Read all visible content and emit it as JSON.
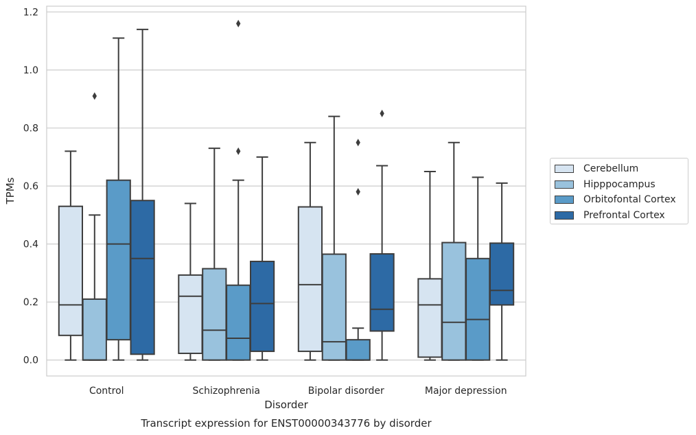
{
  "chart_data": {
    "type": "box",
    "title": "",
    "xlabel": "Disorder",
    "ylabel": "TPMs",
    "caption": "Transcript expression for ENST00000343776 by disorder",
    "ylim": [
      -0.055,
      1.22
    ],
    "yticks": [
      "0.0",
      "0.2",
      "0.4",
      "0.6",
      "0.8",
      "1.0",
      "1.2"
    ],
    "ytick_values": [
      0.0,
      0.2,
      0.4,
      0.6,
      0.8,
      1.0,
      1.2
    ],
    "grid": "horizontal",
    "legend_position": "right",
    "categories": [
      "Control",
      "Schizophrenia",
      "Bipolar disorder",
      "Major depression"
    ],
    "series": [
      {
        "name": "Cerebellum",
        "color": "#d6e4f1",
        "boxes": [
          {
            "whislo": 0.0,
            "q1": 0.085,
            "med": 0.19,
            "q3": 0.53,
            "whishi": 0.72,
            "fliers": []
          },
          {
            "whislo": 0.0,
            "q1": 0.023,
            "med": 0.22,
            "q3": 0.293,
            "whishi": 0.54,
            "fliers": []
          },
          {
            "whislo": 0.0,
            "q1": 0.03,
            "med": 0.26,
            "q3": 0.528,
            "whishi": 0.75,
            "fliers": []
          },
          {
            "whislo": 0.0,
            "q1": 0.01,
            "med": 0.19,
            "q3": 0.28,
            "whishi": 0.65,
            "fliers": []
          }
        ]
      },
      {
        "name": "Hipppocampus",
        "color": "#99c2dd",
        "boxes": [
          {
            "whislo": 0.0,
            "q1": 0.0,
            "med": 0.0,
            "q3": 0.21,
            "whishi": 0.5,
            "fliers": [
              0.91
            ]
          },
          {
            "whislo": 0.0,
            "q1": 0.0,
            "med": 0.103,
            "q3": 0.315,
            "whishi": 0.73,
            "fliers": []
          },
          {
            "whislo": 0.0,
            "q1": 0.0,
            "med": 0.063,
            "q3": 0.365,
            "whishi": 0.84,
            "fliers": []
          },
          {
            "whislo": 0.0,
            "q1": 0.0,
            "med": 0.13,
            "q3": 0.405,
            "whishi": 0.75,
            "fliers": []
          }
        ]
      },
      {
        "name": "Orbitofontal Cortex",
        "color": "#5a9bc8",
        "boxes": [
          {
            "whislo": 0.0,
            "q1": 0.07,
            "med": 0.4,
            "q3": 0.62,
            "whishi": 1.11,
            "fliers": []
          },
          {
            "whislo": 0.0,
            "q1": 0.0,
            "med": 0.075,
            "q3": 0.258,
            "whishi": 0.62,
            "fliers": [
              0.72,
              1.16
            ]
          },
          {
            "whislo": 0.0,
            "q1": 0.0,
            "med": 0.0,
            "q3": 0.07,
            "whishi": 0.11,
            "fliers": [
              0.58,
              0.75
            ]
          },
          {
            "whislo": 0.0,
            "q1": 0.0,
            "med": 0.14,
            "q3": 0.35,
            "whishi": 0.63,
            "fliers": []
          }
        ]
      },
      {
        "name": "Prefrontal Cortex",
        "color": "#2d6aa5",
        "boxes": [
          {
            "whislo": 0.0,
            "q1": 0.02,
            "med": 0.35,
            "q3": 0.55,
            "whishi": 1.14,
            "fliers": []
          },
          {
            "whislo": 0.0,
            "q1": 0.03,
            "med": 0.195,
            "q3": 0.34,
            "whishi": 0.7,
            "fliers": []
          },
          {
            "whislo": 0.0,
            "q1": 0.1,
            "med": 0.175,
            "q3": 0.366,
            "whishi": 0.67,
            "fliers": [
              0.85
            ]
          },
          {
            "whislo": 0.0,
            "q1": 0.19,
            "med": 0.24,
            "q3": 0.403,
            "whishi": 0.61,
            "fliers": []
          }
        ]
      }
    ]
  }
}
